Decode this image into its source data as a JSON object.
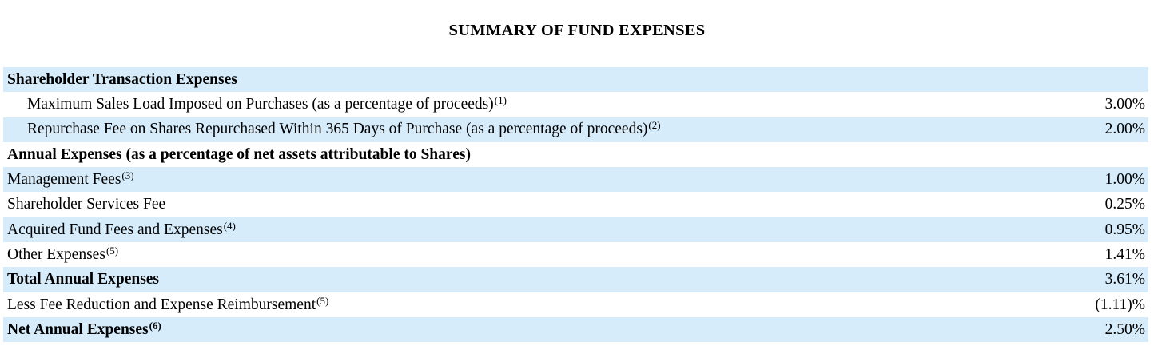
{
  "title": "SUMMARY OF FUND EXPENSES",
  "table": {
    "colors": {
      "row_shaded": "#d6ecfb",
      "row_plain": "#ffffff",
      "text": "#000000"
    },
    "rows": [
      {
        "label": "Shareholder Transaction Expenses",
        "sup": "",
        "value": "",
        "bold": true,
        "indent": false,
        "shaded": true
      },
      {
        "label": "Maximum Sales Load Imposed on Purchases (as a percentage of proceeds)",
        "sup": "(1)",
        "value": "3.00%",
        "bold": false,
        "indent": true,
        "shaded": false
      },
      {
        "label": "Repurchase Fee on Shares Repurchased Within 365 Days of Purchase (as a percentage of proceeds)",
        "sup": "(2)",
        "value": "2.00%",
        "bold": false,
        "indent": true,
        "shaded": true
      },
      {
        "label": "Annual Expenses (as a percentage of net assets attributable to Shares)",
        "sup": "",
        "value": "",
        "bold": true,
        "indent": false,
        "shaded": false
      },
      {
        "label": "Management Fees",
        "sup": "(3)",
        "value": "1.00%",
        "bold": false,
        "indent": false,
        "shaded": true
      },
      {
        "label": "Shareholder Services Fee",
        "sup": "",
        "value": "0.25%",
        "bold": false,
        "indent": false,
        "shaded": false
      },
      {
        "label": "Acquired Fund Fees and Expenses",
        "sup": "(4)",
        "value": "0.95%",
        "bold": false,
        "indent": false,
        "shaded": true
      },
      {
        "label": "Other Expenses",
        "sup": "(5)",
        "value": "1.41%",
        "bold": false,
        "indent": false,
        "shaded": false
      },
      {
        "label": "Total Annual Expenses",
        "sup": "",
        "value": "3.61%",
        "bold": true,
        "indent": false,
        "shaded": true
      },
      {
        "label": "Less Fee Reduction and Expense Reimbursement",
        "sup": "(5)",
        "value": "(1.11)%",
        "bold": false,
        "indent": false,
        "shaded": false
      },
      {
        "label": "Net Annual Expenses",
        "sup": "(6)",
        "value": "2.50%",
        "bold": true,
        "indent": false,
        "shaded": true
      }
    ]
  }
}
